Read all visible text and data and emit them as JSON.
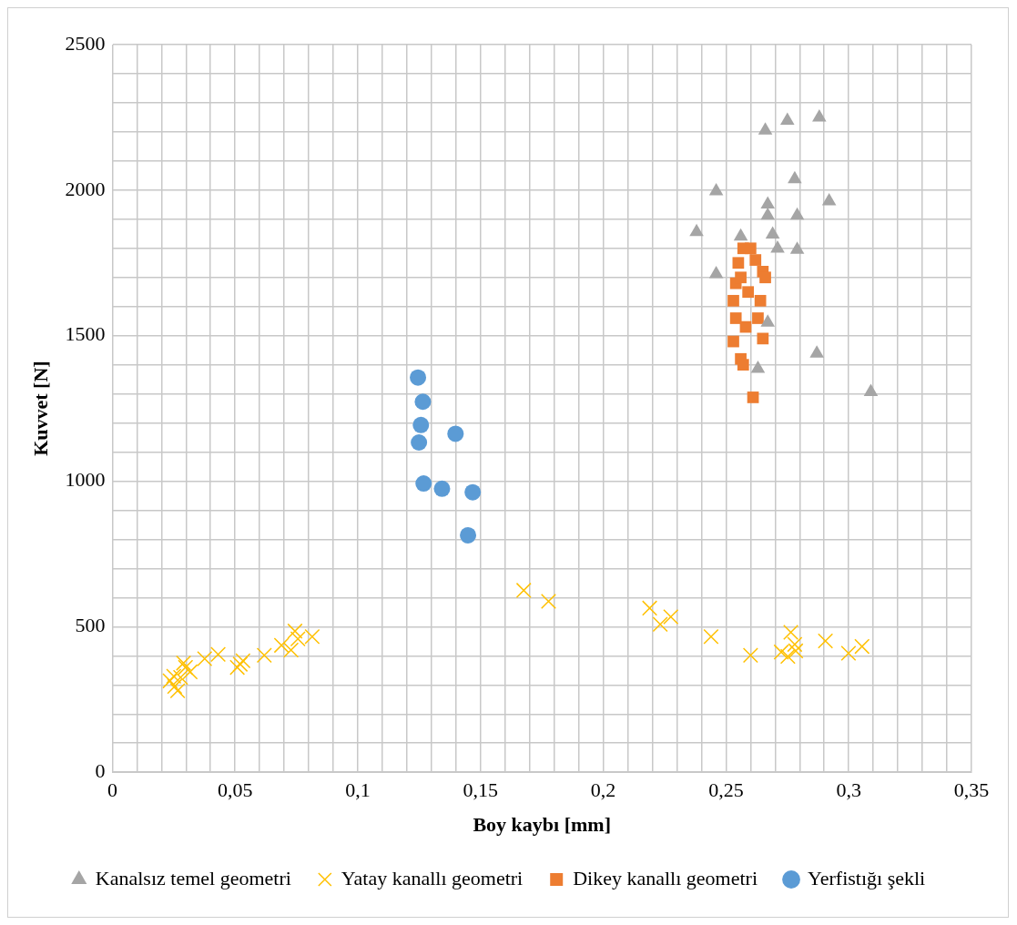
{
  "chart_data": {
    "type": "scatter",
    "xlabel": "Boy kaybı [mm]",
    "ylabel": "Kuvvet [N]",
    "grid": true,
    "legend": "bottom",
    "xlim": [
      0,
      0.35
    ],
    "ylim": [
      0,
      2500
    ],
    "xticks": [
      0,
      {
        "value": 0.01,
        "label": null
      },
      {
        "value": 0.02,
        "label": null
      },
      {
        "value": 0.03,
        "label": null
      },
      {
        "value": 0.04,
        "label": null
      },
      {
        "value": 0.05,
        "label": "0,05"
      },
      {
        "value": 0.06,
        "label": null
      },
      {
        "value": 0.07,
        "label": null
      },
      {
        "value": 0.08,
        "label": null
      },
      {
        "value": 0.09,
        "label": null
      },
      {
        "value": 0.1,
        "label": "0,1"
      },
      {
        "value": 0.11,
        "label": null
      },
      {
        "value": 0.12,
        "label": null
      },
      {
        "value": 0.13,
        "label": null
      },
      {
        "value": 0.14,
        "label": null
      },
      {
        "value": 0.15,
        "label": "0,15"
      },
      {
        "value": 0.16,
        "label": null
      },
      {
        "value": 0.17,
        "label": null
      },
      {
        "value": 0.18,
        "label": null
      },
      {
        "value": 0.19,
        "label": null
      },
      {
        "value": 0.2,
        "label": "0,2"
      },
      {
        "value": 0.21,
        "label": null
      },
      {
        "value": 0.22,
        "label": null
      },
      {
        "value": 0.23,
        "label": null
      },
      {
        "value": 0.24,
        "label": null
      },
      {
        "value": 0.25,
        "label": "0,25"
      },
      {
        "value": 0.26,
        "label": null
      },
      {
        "value": 0.27,
        "label": null
      },
      {
        "value": 0.28,
        "label": null
      },
      {
        "value": 0.29,
        "label": null
      },
      {
        "value": 0.3,
        "label": "0,3"
      },
      {
        "value": 0.31,
        "label": null
      },
      {
        "value": 0.32,
        "label": null
      },
      {
        "value": 0.33,
        "label": null
      },
      {
        "value": 0.34,
        "label": null
      },
      {
        "value": 0.35,
        "label": "0,35"
      }
    ],
    "yticks": [
      0,
      {
        "value": 100,
        "label": null
      },
      {
        "value": 200,
        "label": null
      },
      {
        "value": 300,
        "label": null
      },
      {
        "value": 400,
        "label": null
      },
      500,
      {
        "value": 600,
        "label": null
      },
      {
        "value": 700,
        "label": null
      },
      {
        "value": 800,
        "label": null
      },
      {
        "value": 900,
        "label": null
      },
      1000,
      {
        "value": 1100,
        "label": null
      },
      {
        "value": 1200,
        "label": null
      },
      {
        "value": 1300,
        "label": null
      },
      {
        "value": 1400,
        "label": null
      },
      1500,
      {
        "value": 1600,
        "label": null
      },
      {
        "value": 1700,
        "label": null
      },
      {
        "value": 1800,
        "label": null
      },
      {
        "value": 1900,
        "label": null
      },
      2000,
      {
        "value": 2100,
        "label": null
      },
      {
        "value": 2200,
        "label": null
      },
      {
        "value": 2300,
        "label": null
      },
      {
        "value": 2400,
        "label": null
      },
      2500
    ],
    "series": [
      {
        "name": "Kanalsız temel geometri",
        "color": "#a5a5a5",
        "marker": "triangle",
        "x": [
          0.238,
          0.246,
          0.246,
          0.256,
          0.266,
          0.275,
          0.288,
          0.278,
          0.267,
          0.279,
          0.292,
          0.267,
          0.269,
          0.271,
          0.279,
          0.267,
          0.263,
          0.287,
          0.309
        ],
        "values": [
          1856,
          1996,
          1712,
          1841,
          2205,
          2239,
          2250,
          2038,
          1951,
          1913,
          1962,
          1913,
          1848,
          1799,
          1795,
          1545,
          1386,
          1439,
          1307
        ]
      },
      {
        "name": "Yatay kanallı geometri",
        "color": "#ffc000",
        "marker": "cross",
        "x": [
          0.0235,
          0.0254,
          0.0266,
          0.0278,
          0.0298,
          0.0317,
          0.0376,
          0.0431,
          0.0509,
          0.0521,
          0.0532,
          0.0619,
          0.0689,
          0.0728,
          0.0744,
          0.0756,
          0.0814,
          0.029,
          0.025,
          0.1676,
          0.1777,
          0.2189,
          0.2232,
          0.2275,
          0.2439,
          0.26,
          0.2764,
          0.2725,
          0.2752,
          0.278,
          0.2784,
          0.2905,
          0.2999,
          0.3054
        ],
        "values": [
          314,
          295,
          280,
          326,
          360,
          345,
          390,
          405,
          360,
          371,
          383,
          402,
          436,
          420,
          485,
          458,
          466,
          375,
          330,
          625,
          587,
          564,
          508,
          534,
          466,
          402,
          481,
          413,
          398,
          439,
          417,
          451,
          409,
          432
        ]
      },
      {
        "name": "Dikey kanallı geometri",
        "color": "#ed7d31",
        "marker": "square",
        "x": [
          0.257,
          0.26,
          0.262,
          0.265,
          0.266,
          0.255,
          0.254,
          0.253,
          0.254,
          0.253,
          0.256,
          0.257,
          0.258,
          0.263,
          0.264,
          0.265,
          0.259,
          0.256,
          0.261
        ],
        "values": [
          1800,
          1800,
          1760,
          1720,
          1700,
          1750,
          1680,
          1620,
          1560,
          1480,
          1420,
          1400,
          1530,
          1560,
          1620,
          1490,
          1650,
          1700,
          1288
        ]
      },
      {
        "name": "Yerfistığı şekli",
        "color": "#5b9bd5",
        "marker": "circle",
        "x": [
          0.1245,
          0.1265,
          0.1257,
          0.1249,
          0.1398,
          0.1268,
          0.1343,
          0.1468,
          0.1449
        ],
        "values": [
          1356,
          1273,
          1193,
          1133,
          1163,
          992,
          974,
          962,
          814
        ]
      }
    ]
  }
}
